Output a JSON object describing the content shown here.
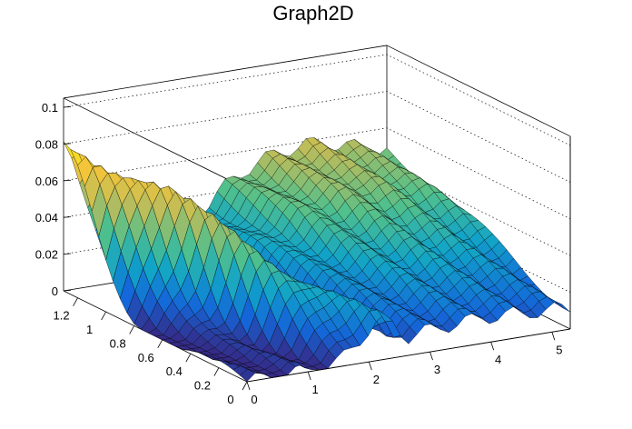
{
  "chart_data": {
    "type": "surface",
    "title": "Graph2D",
    "xlabel": "",
    "ylabel": "",
    "zlabel": "",
    "xlim": [
      0,
      5.3
    ],
    "ylim": [
      0,
      1.3
    ],
    "zlim": [
      0,
      0.105
    ],
    "x_ticks": [
      "0",
      "1",
      "2",
      "3",
      "4",
      "5"
    ],
    "y_ticks": [
      "0",
      "0.2",
      "0.4",
      "0.6",
      "0.8",
      "1",
      "1.2"
    ],
    "z_ticks": [
      "0",
      "0.02",
      "0.04",
      "0.06",
      "0.08",
      "0.1"
    ],
    "grid": true,
    "colormap": [
      "#352a87",
      "#1467d9",
      "#11a3c8",
      "#50c08c",
      "#b8bc5d",
      "#f2c53a",
      "#f9fb0e"
    ],
    "surface": {
      "description_points_x": [
        0,
        0.5,
        1,
        1.5,
        2,
        2.5,
        3,
        3.5,
        4,
        4.5,
        5,
        5.3
      ],
      "ridge_1_peak": {
        "x": 0.0,
        "y": 1.2,
        "z": 0.08
      },
      "ridge_2_peak": {
        "x": 3.0,
        "y": 1.2,
        "z": 0.08
      },
      "valley_min": {
        "x": 0.0,
        "y": 0.0,
        "z": 0.0
      }
    }
  }
}
